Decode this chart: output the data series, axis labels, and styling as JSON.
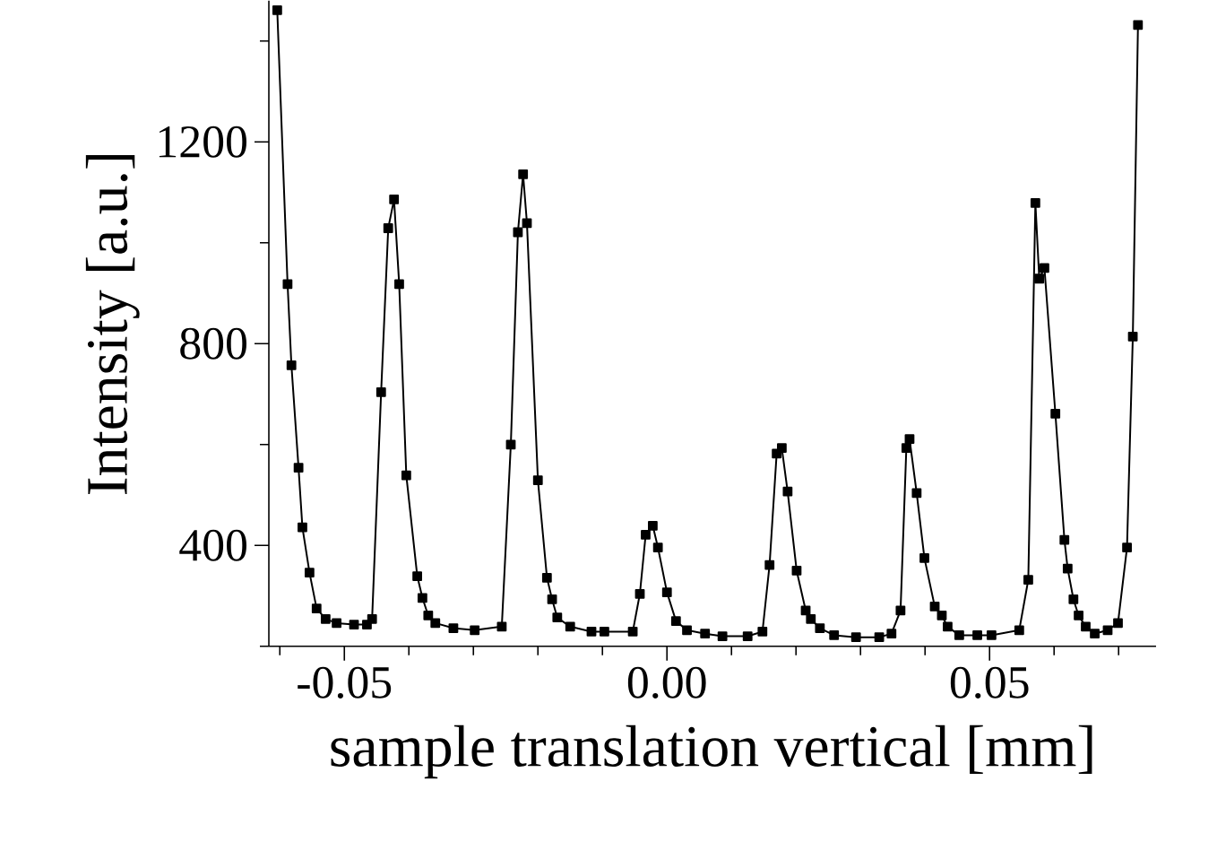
{
  "chart_data": {
    "type": "line",
    "xlabel": "sample translation vertical [mm]",
    "ylabel": "Intensity [a.u.]",
    "xlim": [
      -0.0617,
      0.0758
    ],
    "ylim": [
      200,
      1480
    ],
    "xticks": [
      {
        "value": -0.06,
        "label": null
      },
      {
        "value": -0.05,
        "label": "-0.05"
      },
      {
        "value": -0.04,
        "label": null
      },
      {
        "value": -0.03,
        "label": null
      },
      {
        "value": -0.02,
        "label": null
      },
      {
        "value": -0.01,
        "label": null
      },
      {
        "value": 0,
        "label": "0.00"
      },
      {
        "value": 0.01,
        "label": null
      },
      {
        "value": 0.02,
        "label": null
      },
      {
        "value": 0.03,
        "label": null
      },
      {
        "value": 0.04,
        "label": null
      },
      {
        "value": 0.05,
        "label": "0.05"
      },
      {
        "value": 0.06,
        "label": null
      },
      {
        "value": 0.07,
        "label": null
      }
    ],
    "yticks": [
      {
        "value": 200,
        "label": null
      },
      400,
      {
        "value": 600,
        "label": null
      },
      800,
      {
        "value": 1000,
        "label": null
      },
      1200,
      {
        "value": 1400,
        "label": null
      }
    ],
    "marker": "square",
    "line_style": "solid",
    "series": [
      {
        "color": "#000000",
        "x": [
          -0.0604,
          -0.0588,
          -0.0582,
          -0.0571,
          -0.0565,
          -0.0554,
          -0.0543,
          -0.0529,
          -0.0512,
          -0.0485,
          -0.0465,
          -0.0457,
          -0.0443,
          -0.0432,
          -0.0423,
          -0.0415,
          -0.0404,
          -0.0387,
          -0.0379,
          -0.037,
          -0.0359,
          -0.0331,
          -0.0298,
          -0.0256,
          -0.0242,
          -0.0231,
          -0.0223,
          -0.0217,
          -0.02,
          -0.0186,
          -0.0178,
          -0.017,
          -0.015,
          -0.0117,
          -0.0097,
          -0.0053,
          -0.0042,
          -0.0033,
          -0.0022,
          -0.0014,
          0.0,
          0.0014,
          0.0031,
          0.0059,
          0.0086,
          0.0125,
          0.0148,
          0.0159,
          0.017,
          0.0178,
          0.0187,
          0.0201,
          0.0215,
          0.0223,
          0.0237,
          0.0259,
          0.0293,
          0.0329,
          0.0348,
          0.0362,
          0.0371,
          0.0376,
          0.0387,
          0.0399,
          0.0415,
          0.0426,
          0.0435,
          0.0453,
          0.0481,
          0.0503,
          0.0546,
          0.056,
          0.0571,
          0.0577,
          0.0585,
          0.0602,
          0.0616,
          0.0621,
          0.063,
          0.0638,
          0.0649,
          0.0663,
          0.0683,
          0.0699,
          0.0713,
          0.0722,
          0.073
        ],
        "values": [
          1461,
          918,
          757,
          554,
          436,
          346,
          275,
          254,
          246,
          243,
          243,
          254,
          704,
          1029,
          1086,
          918,
          539,
          339,
          296,
          261,
          246,
          236,
          232,
          239,
          600,
          1021,
          1136,
          1039,
          529,
          336,
          293,
          257,
          239,
          229,
          229,
          229,
          304,
          421,
          439,
          396,
          307,
          250,
          232,
          225,
          220,
          220,
          229,
          361,
          582,
          593,
          507,
          350,
          271,
          254,
          236,
          222,
          218,
          218,
          225,
          271,
          593,
          611,
          504,
          375,
          279,
          261,
          239,
          222,
          222,
          222,
          232,
          332,
          1079,
          929,
          950,
          661,
          411,
          354,
          293,
          261,
          239,
          225,
          232,
          246,
          396,
          814,
          1432
        ]
      }
    ]
  }
}
